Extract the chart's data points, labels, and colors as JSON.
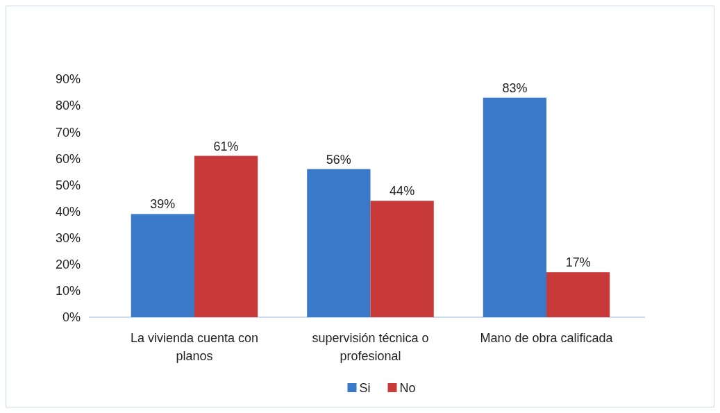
{
  "chart_data": {
    "type": "bar",
    "categories": [
      "La vivienda cuenta con planos",
      "supervisión técnica o profesional",
      "Mano de obra calificada"
    ],
    "series": [
      {
        "name": "Si",
        "color": "#3a78c8",
        "values": [
          39,
          56,
          83
        ]
      },
      {
        "name": "No",
        "color": "#c8393a",
        "values": [
          61,
          44,
          17
        ]
      }
    ],
    "ylim": [
      0,
      90
    ],
    "yticks": [
      {
        "value": 0,
        "label": "0%"
      },
      {
        "value": 10,
        "label": "10%"
      },
      {
        "value": 20,
        "label": "20%"
      },
      {
        "value": 30,
        "label": "30%"
      },
      {
        "value": 40,
        "label": "40%"
      },
      {
        "value": 50,
        "label": "50%"
      },
      {
        "value": 60,
        "label": "60%"
      },
      {
        "value": 70,
        "label": "70%"
      },
      {
        "value": 80,
        "label": "80%"
      },
      {
        "value": 90,
        "label": "90%"
      }
    ],
    "value_labels": [
      [
        "39%",
        "56%",
        "83%"
      ],
      [
        "61%",
        "44%",
        "17%"
      ]
    ],
    "legend": "bottom"
  }
}
